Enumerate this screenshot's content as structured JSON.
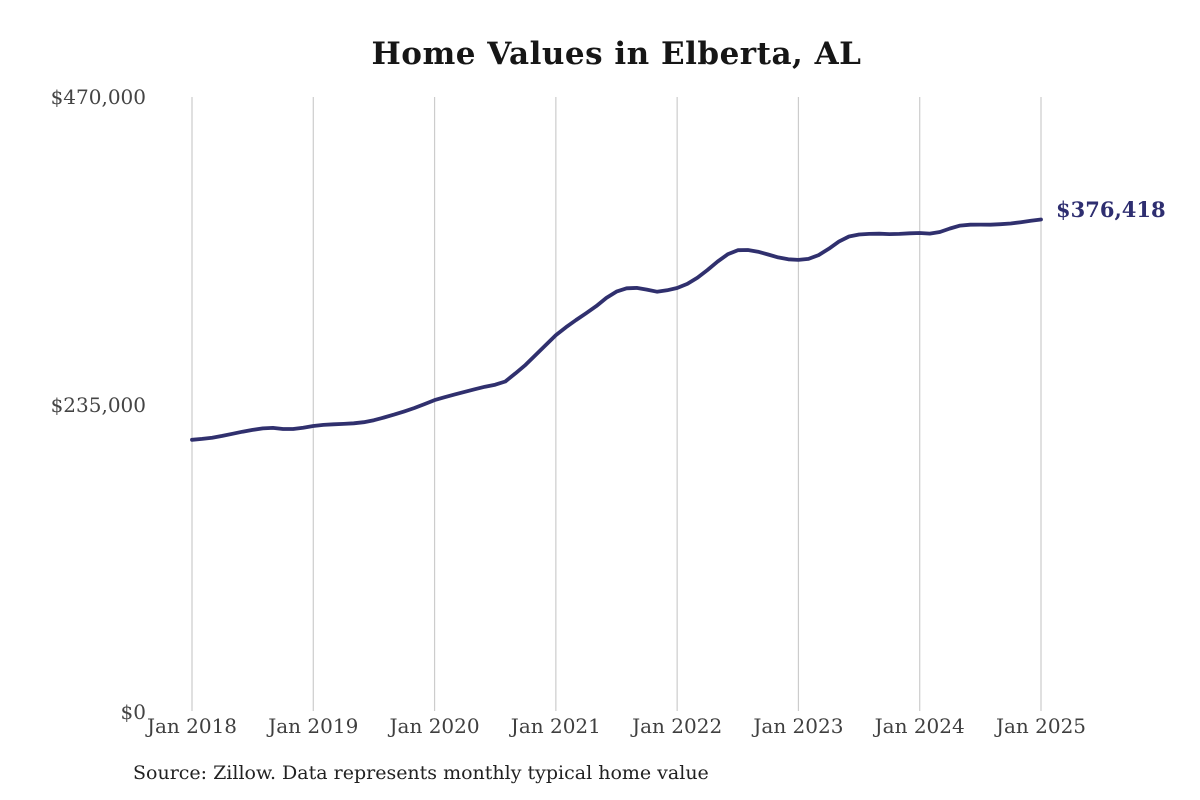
{
  "page": {
    "source_note": "Source: Zillow. Data represents monthly typical home value"
  },
  "chart_data": {
    "type": "line",
    "title": "Home Values in Elberta, AL",
    "series_name": "Monthly typical home value",
    "frequency": "monthly",
    "start_month": "Jan 2018",
    "end_month": "Jan 2025",
    "end_label": "$376,418",
    "end_value": 376418,
    "ylim": [
      0,
      470000
    ],
    "grid": "vertical-only",
    "legend": "none",
    "line_color": "#30306e",
    "grid_color": "#cccccc",
    "x_tick_labels": [
      "Jan 2018",
      "Jan 2019",
      "Jan 2020",
      "Jan 2021",
      "Jan 2022",
      "Jan 2023",
      "Jan 2024",
      "Jan 2025"
    ],
    "y_ticks": [
      {
        "value": 0,
        "label": "$0"
      },
      {
        "value": 235000,
        "label": "$235,000"
      },
      {
        "value": 470000,
        "label": "$470,000"
      }
    ],
    "values": [
      208000,
      208700,
      209600,
      211000,
      212600,
      214200,
      215600,
      216700,
      217100,
      216300,
      216300,
      217300,
      218600,
      219400,
      219900,
      220200,
      220600,
      221500,
      223000,
      225100,
      227300,
      229700,
      232300,
      235300,
      238400,
      240600,
      242700,
      244700,
      246700,
      248600,
      250100,
      252600,
      258800,
      265300,
      272800,
      280500,
      288000,
      294100,
      299600,
      304800,
      310200,
      316500,
      321300,
      323800,
      324100,
      322800,
      321200,
      322300,
      324000,
      327200,
      331900,
      337800,
      344200,
      349800,
      352900,
      353100,
      351800,
      349600,
      347400,
      346000,
      345500,
      346300,
      349200,
      354000,
      359500,
      363400,
      364900,
      365400,
      365500,
      365200,
      365400,
      365800,
      366100,
      365600,
      366800,
      369500,
      371700,
      372400,
      372500,
      372400,
      372800,
      373300,
      374300,
      375400,
      376418
    ]
  }
}
